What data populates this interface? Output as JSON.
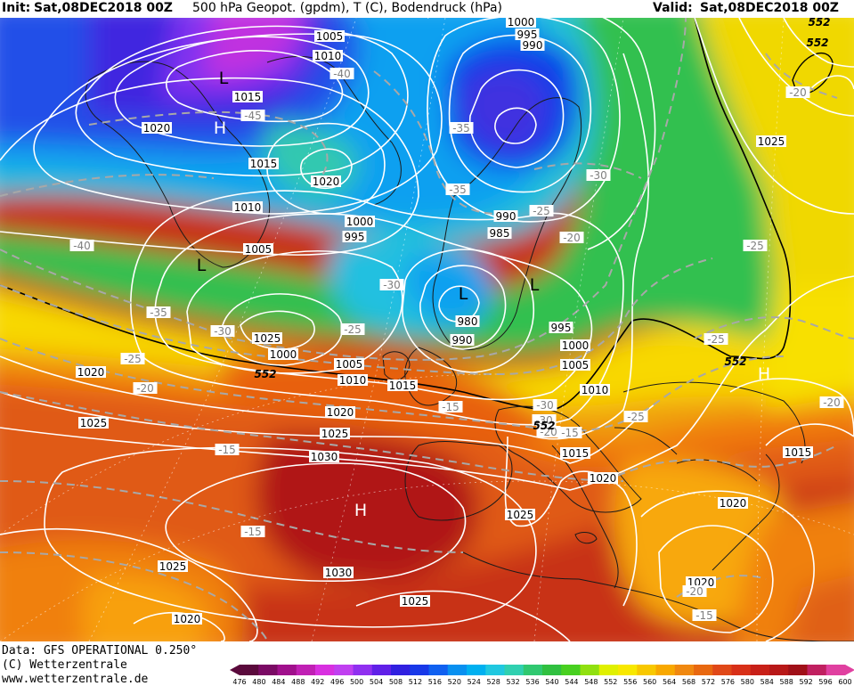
{
  "header": {
    "init_label": "Init:",
    "init_value": "Sat,08DEC2018 00Z",
    "description": "500 hPa Geopot. (gpdm), T (C), Bodendruck (hPa)",
    "valid_label": "Valid:",
    "valid_value": "Sat,08DEC2018 00Z"
  },
  "footer": {
    "data_source": "Data: GFS OPERATIONAL 0.250°",
    "copyright": "(C) Wetterzentrale",
    "website": "www.wetterzentrale.de"
  },
  "colorbar": {
    "labels": [
      "476",
      "480",
      "484",
      "488",
      "492",
      "496",
      "500",
      "504",
      "508",
      "512",
      "516",
      "520",
      "524",
      "528",
      "532",
      "536",
      "540",
      "544",
      "548",
      "552",
      "556",
      "560",
      "564",
      "568",
      "572",
      "576",
      "580",
      "584",
      "588",
      "592",
      "596",
      "600"
    ],
    "colors": [
      "#5a0a3c",
      "#7a0a64",
      "#a0108c",
      "#c020b4",
      "#d830e0",
      "#c040f0",
      "#9030f0",
      "#6020e8",
      "#3020e0",
      "#1838e8",
      "#1060f0",
      "#0890f0",
      "#00b0f0",
      "#20c8e0",
      "#30d0b0",
      "#30c870",
      "#30c040",
      "#48d020",
      "#90e010",
      "#e0f000",
      "#f8e800",
      "#f8c800",
      "#f8a800",
      "#f08810",
      "#e86810",
      "#e04818",
      "#d83018",
      "#c82018",
      "#b81818",
      "#a01018",
      "#c02060",
      "#e040a0"
    ]
  },
  "pressure_labels": [
    {
      "text": "1005"
    },
    {
      "text": "1010"
    },
    {
      "text": "1015"
    },
    {
      "text": "1020"
    },
    {
      "text": "1015"
    },
    {
      "text": "1010"
    },
    {
      "text": "1005"
    },
    {
      "text": "1020"
    },
    {
      "text": "1000"
    },
    {
      "text": "995"
    },
    {
      "text": "1000"
    },
    {
      "text": "995"
    },
    {
      "text": "990"
    },
    {
      "text": "990"
    },
    {
      "text": "985"
    },
    {
      "text": "980"
    },
    {
      "text": "990"
    },
    {
      "text": "995"
    },
    {
      "text": "1000"
    },
    {
      "text": "1005"
    },
    {
      "text": "1010"
    },
    {
      "text": "1000"
    },
    {
      "text": "1005"
    },
    {
      "text": "1010"
    },
    {
      "text": "1015"
    },
    {
      "text": "1020"
    },
    {
      "text": "1025"
    },
    {
      "text": "1030"
    },
    {
      "text": "1020"
    },
    {
      "text": "1025"
    },
    {
      "text": "1015"
    },
    {
      "text": "1020"
    },
    {
      "text": "1025"
    },
    {
      "text": "1020"
    },
    {
      "text": "1020"
    },
    {
      "text": "1030"
    },
    {
      "text": "1025"
    },
    {
      "text": "1025"
    },
    {
      "text": "1020"
    },
    {
      "text": "1025"
    },
    {
      "text": "1015"
    },
    {
      "text": "1025"
    }
  ],
  "temperature_labels": [
    {
      "text": "-40"
    },
    {
      "text": "-45"
    },
    {
      "text": "-35"
    },
    {
      "text": "-35"
    },
    {
      "text": "-30"
    },
    {
      "text": "-25"
    },
    {
      "text": "-20"
    },
    {
      "text": "-40"
    },
    {
      "text": "-35"
    },
    {
      "text": "-30"
    },
    {
      "text": "-30"
    },
    {
      "text": "-25"
    },
    {
      "text": "-25"
    },
    {
      "text": "-20"
    },
    {
      "text": "-15"
    },
    {
      "text": "-30"
    },
    {
      "text": "-25"
    },
    {
      "text": "-20"
    },
    {
      "text": "-15"
    },
    {
      "text": "-15"
    },
    {
      "text": "-15"
    },
    {
      "text": "-20"
    },
    {
      "text": "-20"
    },
    {
      "text": "-15"
    },
    {
      "text": "-25"
    },
    {
      "text": "-25"
    },
    {
      "text": "-20"
    },
    {
      "text": "-30"
    }
  ],
  "geopotential_labels": [
    {
      "text": "552"
    },
    {
      "text": "552"
    },
    {
      "text": "552"
    },
    {
      "text": "552"
    },
    {
      "text": "552"
    }
  ],
  "pressure_centers": [
    {
      "type": "L"
    },
    {
      "type": "H"
    },
    {
      "type": "L"
    },
    {
      "type": "L"
    },
    {
      "type": "L"
    },
    {
      "type": "H"
    },
    {
      "type": "H"
    }
  ]
}
